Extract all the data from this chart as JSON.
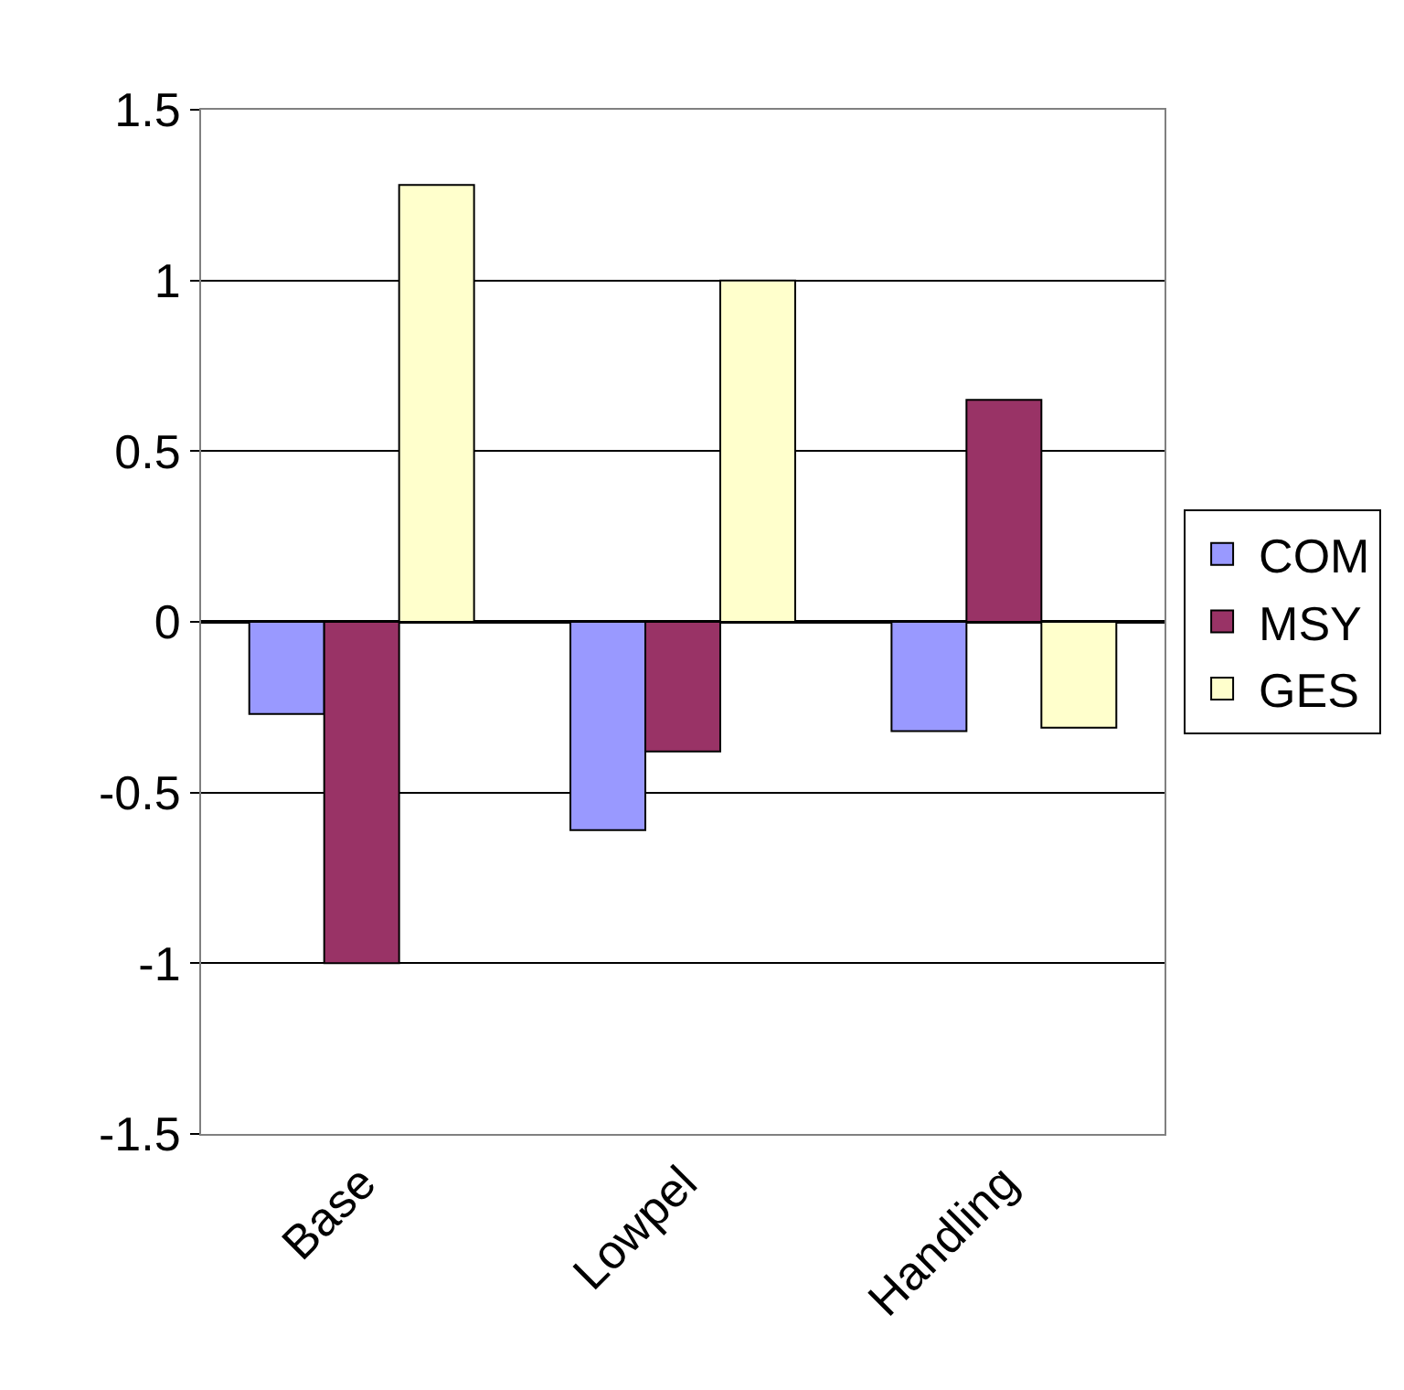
{
  "chart_data": {
    "type": "bar",
    "categories": [
      "Base",
      "Lowpel",
      "Handling"
    ],
    "series": [
      {
        "name": "COM",
        "color": "#9999ff",
        "values": [
          -0.27,
          -0.61,
          -0.32
        ]
      },
      {
        "name": "MSY",
        "color": "#993366",
        "values": [
          -1.0,
          -0.38,
          0.65
        ]
      },
      {
        "name": "GES",
        "color": "#ffffcc",
        "values": [
          1.28,
          1.0,
          -0.31
        ]
      }
    ],
    "ylim": [
      -1.5,
      1.5
    ],
    "yticks": [
      -1.5,
      -1,
      -0.5,
      0,
      0.5,
      1,
      1.5
    ],
    "grid": "y",
    "legend": "right"
  }
}
